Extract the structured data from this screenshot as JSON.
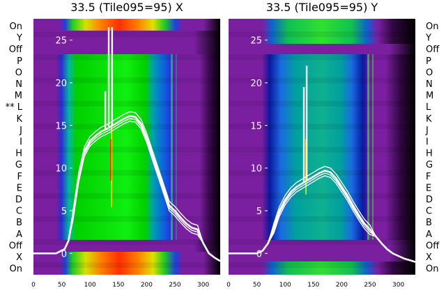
{
  "chart_data": [
    {
      "type": "heatmap",
      "title": "33.5 (Tile095=95) X",
      "xlim": [
        0,
        330
      ],
      "x_ticks": [
        "0",
        "50",
        "100",
        "150",
        "200",
        "250",
        "300"
      ],
      "ylim": [
        -2.5,
        27.5
      ],
      "y_ticks": [
        "0",
        "5",
        "10",
        "15",
        "20",
        "25"
      ],
      "left_row_labels": [
        "On",
        "Y",
        "Off",
        "P",
        "O",
        "N",
        "M",
        "** L",
        "K",
        "J",
        "I",
        "H",
        "G",
        "F",
        "E",
        "D",
        "C",
        "B",
        "A",
        "Off",
        "X",
        "On"
      ],
      "overlay_trace": {
        "x": [
          0,
          40,
          55,
          62,
          70,
          80,
          90,
          100,
          110,
          120,
          130,
          140,
          150,
          160,
          170,
          180,
          190,
          200,
          210,
          220,
          230,
          240,
          250,
          260,
          270,
          280,
          290,
          300,
          310,
          320,
          330
        ],
        "y": [
          0.0,
          0.0,
          0.5,
          1.5,
          4.5,
          9.0,
          12.0,
          13.2,
          13.8,
          14.3,
          14.6,
          15.0,
          15.4,
          15.8,
          16.1,
          16.0,
          15.2,
          13.6,
          11.6,
          9.6,
          7.6,
          5.6,
          5.0,
          4.2,
          3.5,
          3.0,
          2.8,
          1.2,
          0.0,
          -0.5,
          -0.9
        ]
      },
      "spikes": [
        {
          "x": 127,
          "y": 19
        },
        {
          "x": 133,
          "y": 26.5
        },
        {
          "x": 139,
          "y": 26.5
        }
      ]
    },
    {
      "type": "heatmap",
      "title": "33.5 (Tile095=95) Y",
      "xlim": [
        0,
        330
      ],
      "x_ticks": [
        "0",
        "50",
        "100",
        "150",
        "200",
        "250",
        "300"
      ],
      "ylim": [
        -2.5,
        27.5
      ],
      "y_ticks": [
        "0",
        "5",
        "10",
        "15",
        "20",
        "25"
      ],
      "right_row_labels": [
        "On",
        "Y",
        "Off",
        "P",
        "O",
        "N",
        "M",
        "L",
        "K",
        "J",
        "I",
        "H",
        "G",
        "F",
        "E",
        "D",
        "C",
        "B",
        "A",
        "Off",
        "X",
        "On"
      ],
      "overlay_trace": {
        "x": [
          0,
          50,
          60,
          70,
          80,
          90,
          100,
          110,
          120,
          130,
          140,
          150,
          160,
          170,
          180,
          190,
          200,
          210,
          220,
          230,
          240,
          250,
          260,
          270,
          280,
          290,
          300,
          310,
          320,
          330
        ],
        "y": [
          0.0,
          0.0,
          0.3,
          1.2,
          3.0,
          5.0,
          6.3,
          7.2,
          7.8,
          8.2,
          8.6,
          9.0,
          9.4,
          9.7,
          9.5,
          8.8,
          7.8,
          6.8,
          5.6,
          4.5,
          3.5,
          2.8,
          2.0,
          1.2,
          0.5,
          0.0,
          -0.3,
          -0.6,
          -0.8,
          -1.0
        ]
      },
      "spikes": [
        {
          "x": 133,
          "y": 19.5
        },
        {
          "x": 138,
          "y": 22
        }
      ]
    }
  ]
}
